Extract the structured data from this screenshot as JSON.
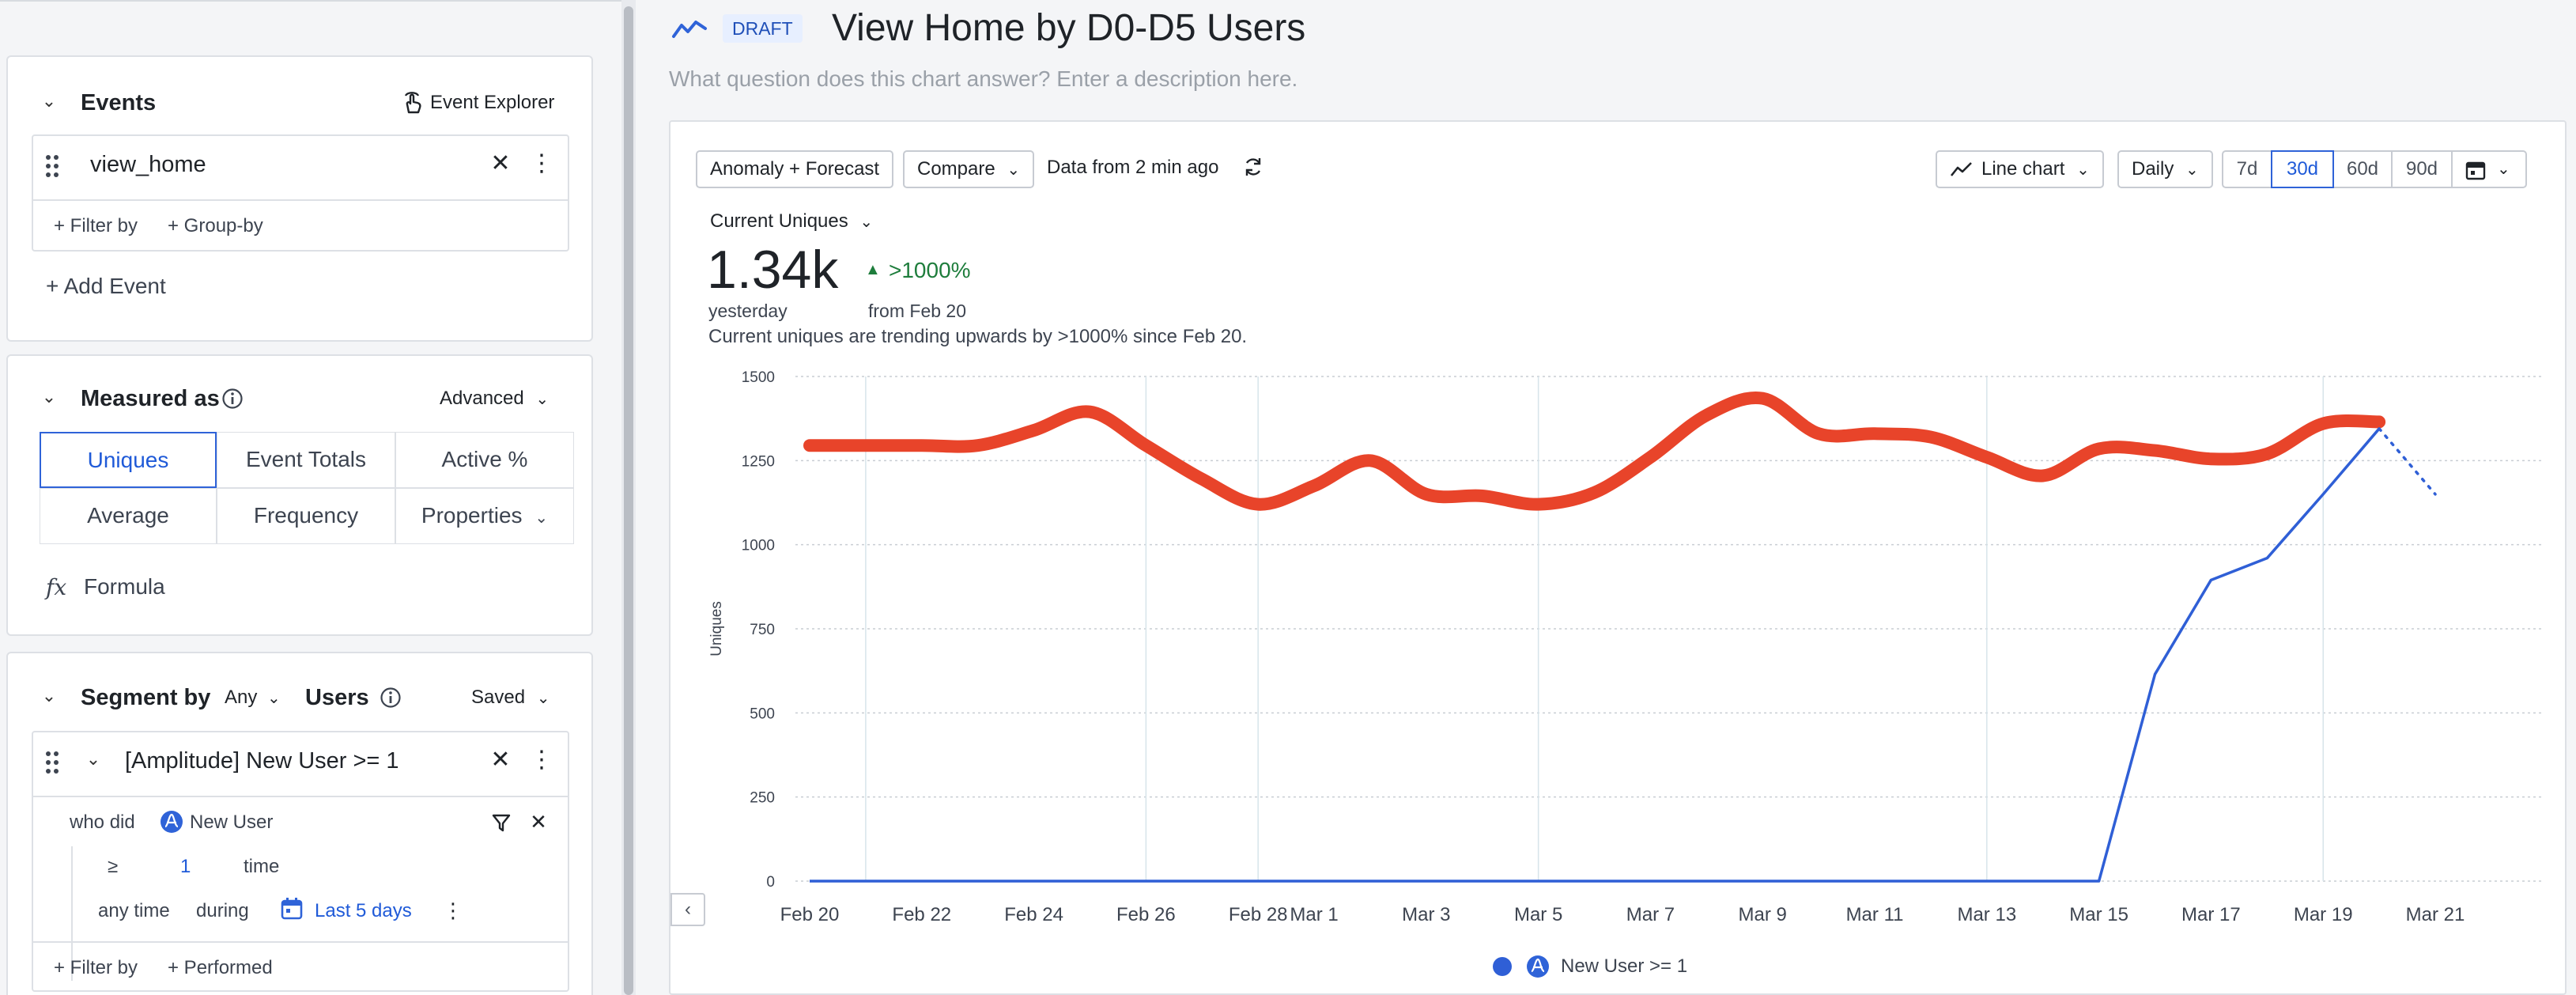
{
  "left": {
    "events": {
      "title": "Events",
      "explorer_label": "Event Explorer",
      "event_name": "view_home",
      "filter_by": "+ Filter by",
      "group_by": "+ Group-by",
      "add_event": "+ Add Event"
    },
    "measured": {
      "title": "Measured as",
      "advanced": "Advanced",
      "options": [
        "Uniques",
        "Event Totals",
        "Active %",
        "Average",
        "Frequency",
        "Properties"
      ],
      "selected": "Uniques",
      "formula_icon": "fx",
      "formula": "Formula"
    },
    "segment": {
      "title": "Segment by",
      "any": "Any",
      "users": "Users",
      "saved": "Saved",
      "segment_name": "[Amplitude] New User >= 1",
      "who_did": "who did",
      "event": "New User",
      "operator": "≥",
      "count": "1",
      "time_label": "time",
      "any_time": "any time",
      "during": "during",
      "range": "Last 5 days",
      "filter_by": "+ Filter by",
      "performed": "+ Performed"
    }
  },
  "header": {
    "status": "DRAFT",
    "title": "View Home by D0-D5 Users",
    "description_placeholder": "What question does this chart answer? Enter a description here."
  },
  "toolbar": {
    "anomaly": "Anomaly + Forecast",
    "compare": "Compare",
    "freshness": "Data from 2 min ago",
    "chart_type": "Line chart",
    "interval": "Daily",
    "ranges": [
      "7d",
      "30d",
      "60d",
      "90d"
    ],
    "selected_range": "30d"
  },
  "metric": {
    "selector": "Current Uniques",
    "value": "1.34k",
    "change": ">1000%",
    "period": "yesterday",
    "compare_from": "from Feb 20",
    "summary": "Current uniques are trending upwards by >1000% since Feb 20."
  },
  "legend": {
    "series": "New User >= 1"
  },
  "colors": {
    "accent": "#2f63d8",
    "line": "#2f5fd6",
    "anomaly_band": "#e8442a",
    "positive": "#1e7d3c"
  },
  "chart_data": {
    "type": "line",
    "ylabel": "Uniques",
    "ylim": [
      0,
      1500
    ],
    "y_ticks": [
      0,
      250,
      500,
      750,
      1000,
      1250,
      1500
    ],
    "x_tick_labels": [
      "Feb 20",
      "Feb 22",
      "Feb 24",
      "Feb 26",
      "Feb 28",
      "Mar 1",
      "Mar 3",
      "Mar 5",
      "Mar 7",
      "Mar 9",
      "Mar 11",
      "Mar 13",
      "Mar 15",
      "Mar 17",
      "Mar 19",
      "Mar 21"
    ],
    "x_dates": [
      "Feb 20",
      "Feb 21",
      "Feb 22",
      "Feb 23",
      "Feb 24",
      "Feb 25",
      "Feb 26",
      "Feb 27",
      "Feb 28",
      "Mar 1",
      "Mar 2",
      "Mar 3",
      "Mar 4",
      "Mar 5",
      "Mar 6",
      "Mar 7",
      "Mar 8",
      "Mar 9",
      "Mar 10",
      "Mar 11",
      "Mar 12",
      "Mar 13",
      "Mar 14",
      "Mar 15",
      "Mar 16",
      "Mar 17",
      "Mar 18",
      "Mar 19",
      "Mar 20",
      "Mar 21"
    ],
    "series": [
      {
        "name": "New User >= 1",
        "x": [
          "Feb 20",
          "Feb 21",
          "Feb 22",
          "Feb 23",
          "Feb 24",
          "Feb 25",
          "Feb 26",
          "Feb 27",
          "Feb 28",
          "Mar 1",
          "Mar 2",
          "Mar 3",
          "Mar 4",
          "Mar 5",
          "Mar 6",
          "Mar 7",
          "Mar 8",
          "Mar 9",
          "Mar 10",
          "Mar 11",
          "Mar 12",
          "Mar 13",
          "Mar 14",
          "Mar 15",
          "Mar 16",
          "Mar 17",
          "Mar 18",
          "Mar 19",
          "Mar 20"
        ],
        "values": [
          0,
          0,
          0,
          0,
          0,
          0,
          0,
          0,
          0,
          0,
          0,
          0,
          0,
          0,
          0,
          0,
          0,
          0,
          0,
          0,
          0,
          0,
          0,
          0,
          615,
          895,
          960,
          1150,
          1345
        ],
        "projected": {
          "x": [
            "Mar 20",
            "Mar 21"
          ],
          "values": [
            1345,
            1150
          ]
        }
      }
    ],
    "anomaly_band": {
      "x": [
        "Feb 20",
        "Feb 21",
        "Feb 22",
        "Feb 23",
        "Feb 24",
        "Feb 25",
        "Feb 26",
        "Feb 27",
        "Feb 28",
        "Mar 1",
        "Mar 2",
        "Mar 3",
        "Mar 4",
        "Mar 5",
        "Mar 6",
        "Mar 7",
        "Mar 8",
        "Mar 9",
        "Mar 10",
        "Mar 11",
        "Mar 12",
        "Mar 13",
        "Mar 14",
        "Mar 15",
        "Mar 16",
        "Mar 17",
        "Mar 18",
        "Mar 19",
        "Mar 20"
      ],
      "values": [
        1295,
        1295,
        1295,
        1295,
        1340,
        1395,
        1295,
        1195,
        1120,
        1175,
        1250,
        1150,
        1145,
        1120,
        1155,
        1260,
        1385,
        1435,
        1330,
        1330,
        1320,
        1260,
        1205,
        1285,
        1280,
        1255,
        1270,
        1360,
        1365
      ]
    },
    "grid": true,
    "legend": "bottom"
  }
}
